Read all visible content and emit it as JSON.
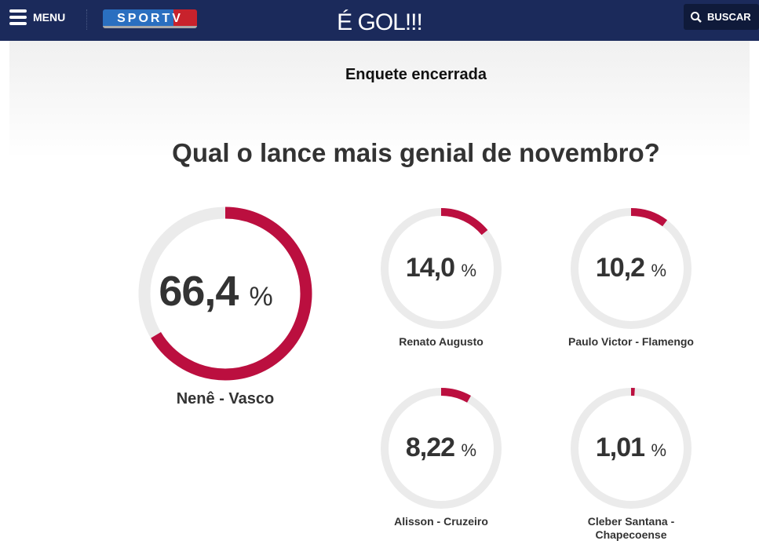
{
  "header": {
    "menu_label": "MENU",
    "logo_text": "SPORTV",
    "title": "É GOL!!!",
    "search_label": "BUSCAR"
  },
  "poll": {
    "status": "Enquete encerrada",
    "question": "Qual o lance mais genial de novembro?",
    "colors": {
      "fill": "#bb0f3f",
      "track": "#ebebeb"
    },
    "options": [
      {
        "label": "Nenê - Vasco",
        "percent_text": "66,4",
        "percent": 66.4,
        "symbol": "%"
      },
      {
        "label": "Renato Augusto",
        "percent_text": "14,0",
        "percent": 14.0,
        "symbol": "%"
      },
      {
        "label": "Paulo Victor - Flamengo",
        "percent_text": "10,2",
        "percent": 10.2,
        "symbol": "%"
      },
      {
        "label": "Alisson - Cruzeiro",
        "percent_text": "8,22",
        "percent": 8.22,
        "symbol": "%"
      },
      {
        "label": "Cleber Santana - Chapecoense",
        "percent_text": "1,01",
        "percent": 1.01,
        "symbol": "%"
      }
    ]
  }
}
